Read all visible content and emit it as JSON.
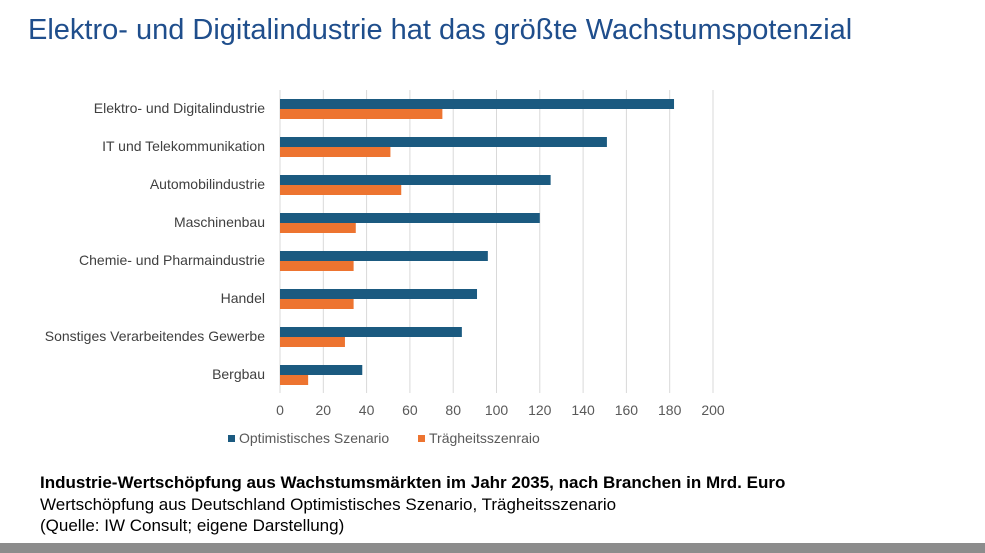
{
  "title": "Elektro- und Digitalindustrie hat das größte Wachstumspotenzial",
  "caption": {
    "heading": "Industrie-Wertschöpfung aus Wachstumsmärkten im Jahr 2035, nach Branchen in Mrd. Euro",
    "subtitle": "Wertschöpfung aus Deutschland Optimistisches Szenario, Trägheitsszenario",
    "source": "(Quelle: IW Consult; eigene Darstellung)"
  },
  "chart_data": {
    "type": "bar",
    "orientation": "horizontal",
    "categories": [
      "Elektro- und Digitalindustrie",
      "IT und Telekommunikation",
      "Automobilindustrie",
      "Maschinenbau",
      "Chemie- und Pharmaindustrie",
      "Handel",
      "Sonstiges Verarbeitendes Gewerbe",
      "Bergbau"
    ],
    "series": [
      {
        "name": "Optimistisches Szenario",
        "color": "#1b5a80",
        "values": [
          182,
          151,
          125,
          120,
          96,
          91,
          84,
          38
        ]
      },
      {
        "name": "Trägheitsszenraio",
        "color": "#ed7430",
        "values": [
          75,
          51,
          56,
          35,
          34,
          34,
          30,
          13
        ]
      }
    ],
    "xlim": [
      0,
      200
    ],
    "xticks": [
      "0",
      "20",
      "40",
      "60",
      "80",
      "100",
      "120",
      "140",
      "160",
      "180",
      "200"
    ],
    "grid": true,
    "legend_position": "bottom"
  }
}
